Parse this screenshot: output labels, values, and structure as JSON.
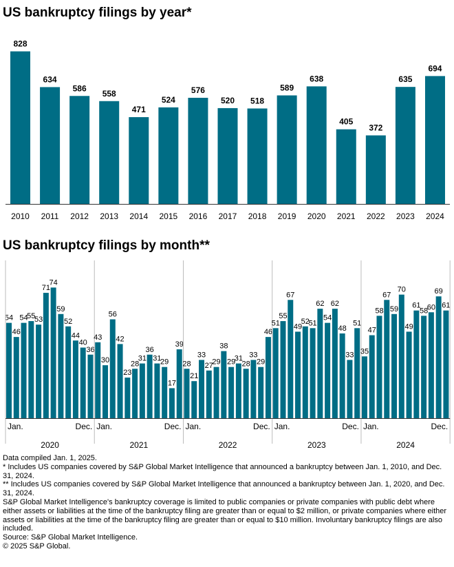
{
  "charts": [
    {
      "title": "US bankruptcy filings by year*",
      "chart_data": {
        "type": "bar",
        "categories": [
          "2010",
          "2011",
          "2012",
          "2013",
          "2014",
          "2015",
          "2016",
          "2017",
          "2018",
          "2019",
          "2020",
          "2021",
          "2022",
          "2023",
          "2024"
        ],
        "values": [
          828,
          634,
          586,
          558,
          471,
          524,
          576,
          520,
          518,
          589,
          638,
          405,
          372,
          635,
          694
        ],
        "color": "#006d85",
        "ylim": [
          0,
          860
        ],
        "grid": false,
        "legend": "none"
      }
    },
    {
      "title": "US bankruptcy filings by month**",
      "chart_data": {
        "type": "bar",
        "years": [
          "2020",
          "2021",
          "2022",
          "2023",
          "2024"
        ],
        "month_labels": {
          "start": "Jan.",
          "end": "Dec."
        },
        "values": [
          [
            54,
            46,
            54,
            55,
            53,
            71,
            74,
            59,
            52,
            44,
            40,
            36
          ],
          [
            43,
            30,
            56,
            42,
            23,
            28,
            31,
            36,
            31,
            29,
            17,
            39
          ],
          [
            28,
            21,
            33,
            27,
            29,
            38,
            29,
            31,
            28,
            33,
            29,
            46
          ],
          [
            51,
            55,
            67,
            49,
            52,
            51,
            62,
            54,
            62,
            48,
            33,
            51
          ],
          [
            35,
            47,
            58,
            67,
            59,
            70,
            49,
            61,
            58,
            60,
            69,
            61
          ]
        ],
        "color": "#006d85",
        "ylim": [
          0,
          80
        ],
        "grid": false,
        "legend": "none"
      }
    }
  ],
  "notes": [
    "Data compiled Jan. 1, 2025.",
    "* Includes US companies covered by S&P Global Market Intelligence that announced a bankruptcy between Jan. 1, 2010, and Dec. 31, 2024.",
    "** Includes US companies covered by S&P Global Market Intelligence that announced a bankruptcy between Jan. 1, 2020, and Dec. 31, 2024.",
    "S&P Global Market Intelligence's bankruptcy coverage is limited to public companies or private companies with public debt where either assets or liabilities at the time of the bankruptcy filing are greater than or equal to $2 million, or private companies where either assets or liabilities at the time of the bankruptcy filing are greater than or equal to $10 million. Involuntary bankruptcy filings are also included.",
    "Source: S&P Global Market Intelligence.",
    "© 2025 S&P Global."
  ]
}
